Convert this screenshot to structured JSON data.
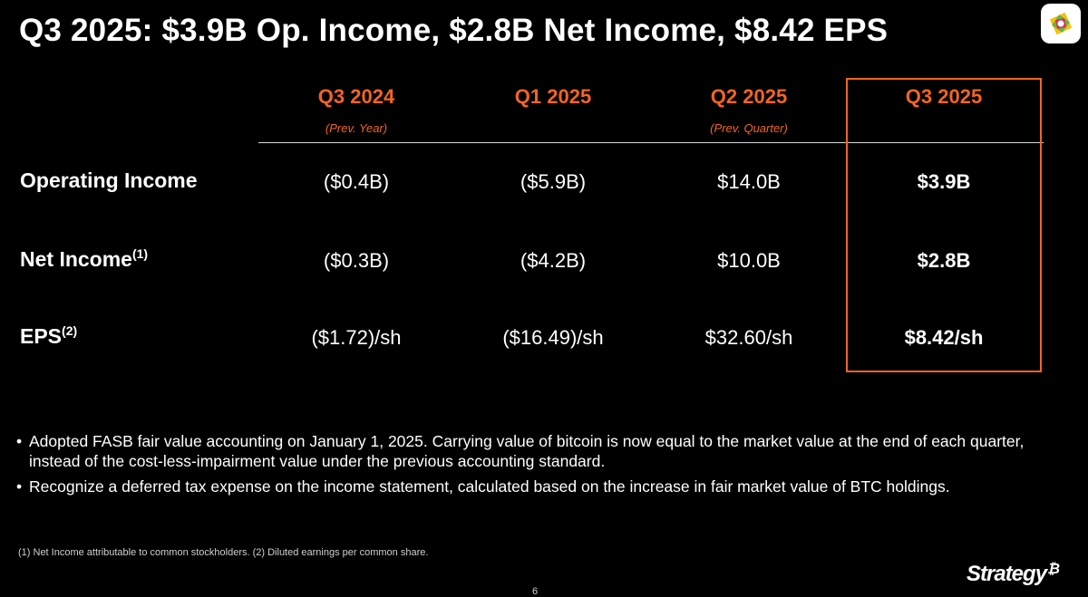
{
  "title": "Q3 2025: $3.9B Op. Income, $2.8B Net Income, $8.42 EPS",
  "columns": [
    {
      "label": "Q3 2024",
      "sub": "(Prev. Year)"
    },
    {
      "label": "Q1 2025",
      "sub": ""
    },
    {
      "label": "Q2 2025",
      "sub": "(Prev. Quarter)"
    },
    {
      "label": "Q3 2025",
      "sub": ""
    }
  ],
  "rows": [
    {
      "label": "Operating Income",
      "sup": "",
      "values": [
        "($0.4B)",
        "($5.9B)",
        "$14.0B",
        "$3.9B"
      ]
    },
    {
      "label": "Net Income",
      "sup": "(1)",
      "values": [
        "($0.3B)",
        "($4.2B)",
        "$10.0B",
        "$2.8B"
      ]
    },
    {
      "label": "EPS",
      "sup": "(2)",
      "values": [
        "($1.72)/sh",
        "($16.49)/sh",
        "$32.60/sh",
        "$8.42/sh"
      ]
    }
  ],
  "bullets": [
    "Adopted FASB fair value accounting on January 1, 2025. Carrying value of bitcoin is now equal to the market value at the end of each quarter, instead of the cost-less-impairment value under the previous accounting standard.",
    "Recognize a deferred tax expense on the income statement, calculated based on the increase in fair market value of BTC holdings."
  ],
  "bullet_char": "•",
  "footnote": "(1) Net Income attributable to common stockholders. (2) Diluted earnings per common share.",
  "page_number": "6",
  "brand": {
    "name": "Strategy",
    "symbol": "₿"
  },
  "colors": {
    "accent": "#f26522",
    "background": "#000000",
    "text": "#ffffff"
  },
  "icons": {
    "top_right": "app-logo-icon"
  }
}
